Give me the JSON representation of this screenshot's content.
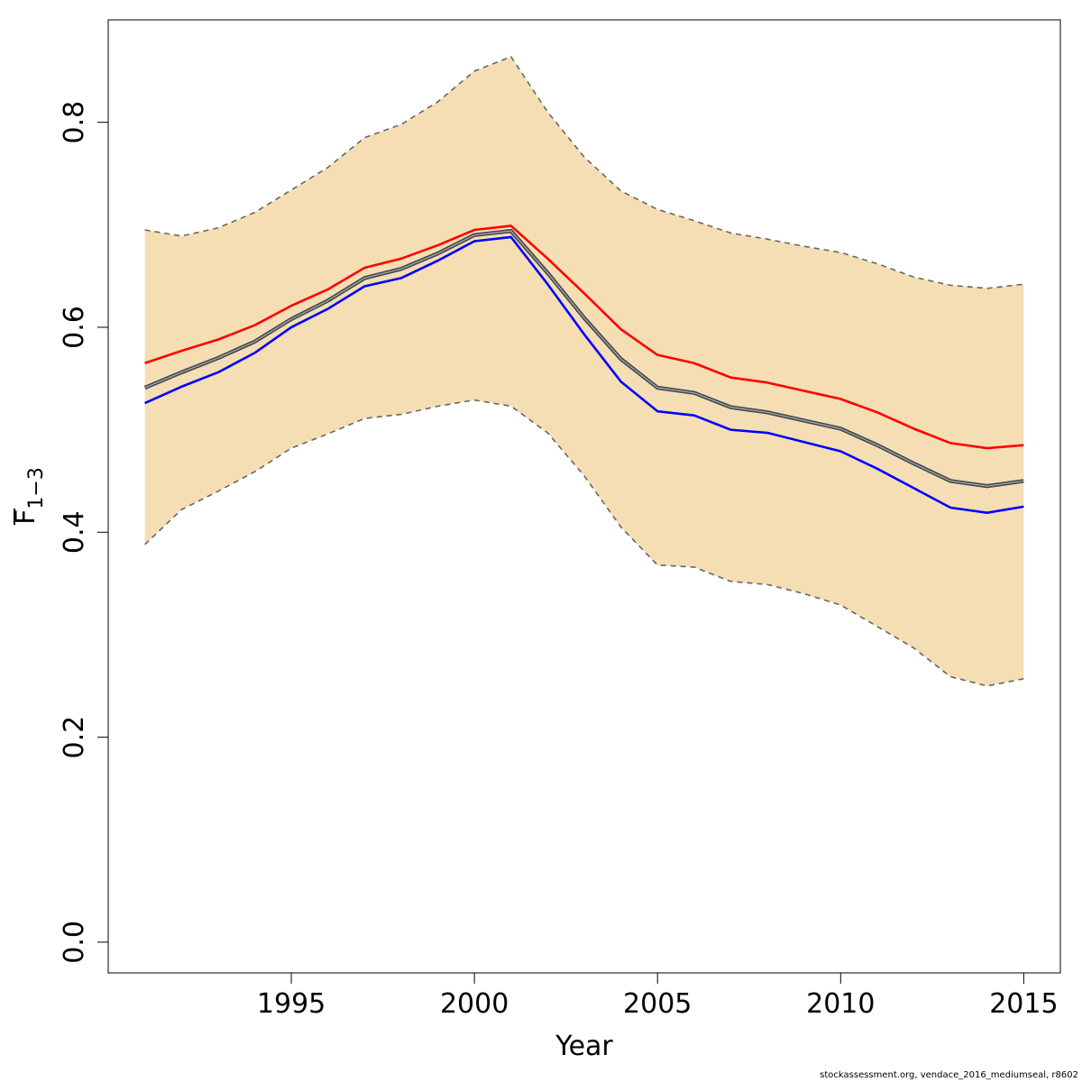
{
  "chart_data": {
    "type": "line",
    "xlabel": "Year",
    "ylabel": {
      "base": "F",
      "subscript": "1−3"
    },
    "xlim": [
      1990,
      2016
    ],
    "ylim": [
      -0.03,
      0.9
    ],
    "x_ticks": [
      1995,
      2000,
      2005,
      2010,
      2015
    ],
    "x_tick_labels": [
      "1995",
      "2000",
      "2005",
      "2010",
      "2015"
    ],
    "y_ticks": [
      0.0,
      0.2,
      0.4,
      0.6,
      0.8
    ],
    "y_tick_labels": [
      "0.0",
      "0.2",
      "0.4",
      "0.6",
      "0.8"
    ],
    "grid": false,
    "x": [
      1991,
      1992,
      1993,
      1994,
      1995,
      1996,
      1997,
      1998,
      1999,
      2000,
      2001,
      2002,
      2003,
      2004,
      2005,
      2006,
      2007,
      2008,
      2009,
      2010,
      2011,
      2012,
      2013,
      2014,
      2015
    ],
    "band": {
      "fill": "#f5deb3",
      "edge_color": "#666666",
      "lower": [
        0.388,
        0.422,
        0.44,
        0.459,
        0.482,
        0.496,
        0.511,
        0.515,
        0.523,
        0.529,
        0.523,
        0.497,
        0.455,
        0.405,
        0.368,
        0.366,
        0.352,
        0.349,
        0.34,
        0.329,
        0.308,
        0.287,
        0.259,
        0.25,
        0.257
      ],
      "upper": [
        0.695,
        0.689,
        0.697,
        0.712,
        0.734,
        0.756,
        0.785,
        0.798,
        0.82,
        0.85,
        0.864,
        0.81,
        0.766,
        0.733,
        0.715,
        0.704,
        0.692,
        0.686,
        0.679,
        0.673,
        0.662,
        0.649,
        0.641,
        0.638,
        0.642
      ]
    },
    "series": [
      {
        "color": "#ff0000",
        "values": [
          0.565,
          0.577,
          0.588,
          0.602,
          0.621,
          0.637,
          0.658,
          0.667,
          0.68,
          0.695,
          0.699,
          0.667,
          0.633,
          0.598,
          0.573,
          0.565,
          0.551,
          0.546,
          0.538,
          0.53,
          0.517,
          0.501,
          0.487,
          0.482,
          0.485
        ]
      },
      {
        "color": "#333333",
        "values": [
          0.541,
          0.556,
          0.57,
          0.586,
          0.608,
          0.626,
          0.648,
          0.657,
          0.672,
          0.69,
          0.694,
          0.653,
          0.609,
          0.569,
          0.541,
          0.536,
          0.522,
          0.517,
          0.509,
          0.501,
          0.485,
          0.467,
          0.45,
          0.445,
          0.45
        ]
      },
      {
        "color": "#0000ff",
        "values": [
          0.526,
          0.542,
          0.556,
          0.575,
          0.6,
          0.618,
          0.64,
          0.648,
          0.665,
          0.684,
          0.688,
          0.642,
          0.593,
          0.547,
          0.518,
          0.514,
          0.5,
          0.497,
          0.488,
          0.479,
          0.462,
          0.443,
          0.424,
          0.419,
          0.425
        ]
      }
    ]
  },
  "footer": {
    "credit": "stockassessment.org, vendace_2016_mediumseal, r8602"
  }
}
